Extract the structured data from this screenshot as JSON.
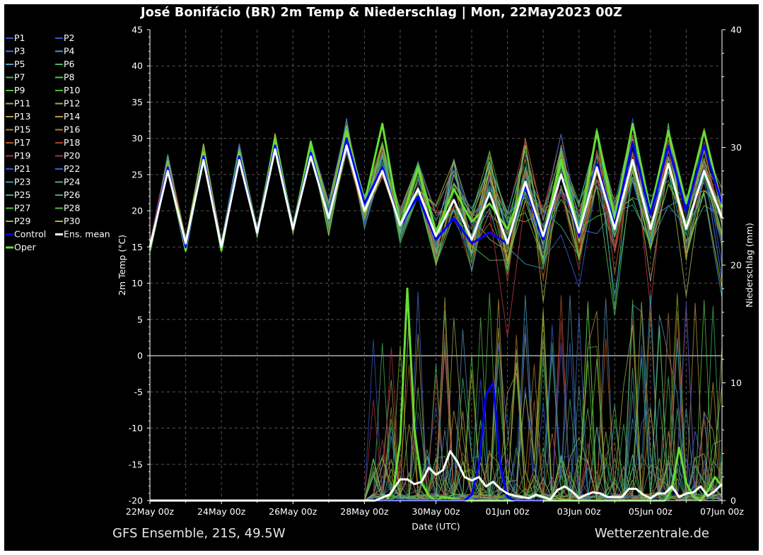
{
  "title": "José Bonifácio  (BR)  2m Temp & Niederschlag | Mon, 22May2023 00Z",
  "footer": {
    "model": "GFS Ensemble, 21S, 49.5W",
    "source": "Wetterzentrale.de"
  },
  "colors": {
    "background": "#000000",
    "grid": "#555555",
    "control": "#0000ff",
    "mean": "#ffffff",
    "oper": "#66dd33"
  },
  "chart_data": {
    "type": "line",
    "xlabel": "Date (UTC)",
    "ylabel_left": "2m Temp (°C)",
    "ylabel_right": "Niederschlag (mm)",
    "x_ticks": [
      "22May 00z",
      "24May 00z",
      "26May 00z",
      "28May 00z",
      "30May 00z",
      "01Jun 00z",
      "03Jun 00z",
      "05Jun 00z",
      "07Jun 00z"
    ],
    "xlim_days": [
      0,
      16
    ],
    "ylim_left": [
      -20,
      45
    ],
    "y_ticks_left": [
      -20,
      -15,
      -10,
      -5,
      0,
      5,
      10,
      15,
      20,
      25,
      30,
      35,
      40,
      45
    ],
    "ylim_right": [
      0,
      40
    ],
    "y_ticks_right": [
      0,
      10,
      20,
      30,
      40
    ],
    "grid": true,
    "legend_position": "left",
    "legend": [
      {
        "name": "P1",
        "color": "#3355cc"
      },
      {
        "name": "P2",
        "color": "#3355cc"
      },
      {
        "name": "P3",
        "color": "#4a6fd8"
      },
      {
        "name": "P4",
        "color": "#5a90b8"
      },
      {
        "name": "P5",
        "color": "#4aa0c8"
      },
      {
        "name": "P6",
        "color": "#44b866"
      },
      {
        "name": "P7",
        "color": "#44b866"
      },
      {
        "name": "P8",
        "color": "#55cc44"
      },
      {
        "name": "P9",
        "color": "#55bb33"
      },
      {
        "name": "P10",
        "color": "#55bb33"
      },
      {
        "name": "P11",
        "color": "#99aa55"
      },
      {
        "name": "P12",
        "color": "#aaaa44"
      },
      {
        "name": "P13",
        "color": "#bb9944"
      },
      {
        "name": "P14",
        "color": "#bb9944"
      },
      {
        "name": "P15",
        "color": "#bb7733"
      },
      {
        "name": "P16",
        "color": "#bb7733"
      },
      {
        "name": "P17",
        "color": "#bb5522"
      },
      {
        "name": "P18",
        "color": "#aa4422"
      },
      {
        "name": "P19",
        "color": "#aa3344"
      },
      {
        "name": "P20",
        "color": "#aa3344"
      },
      {
        "name": "P21",
        "color": "#3355cc"
      },
      {
        "name": "P22",
        "color": "#3366cc"
      },
      {
        "name": "P23",
        "color": "#3399bb"
      },
      {
        "name": "P24",
        "color": "#44aaaa"
      },
      {
        "name": "P25",
        "color": "#44aa88"
      },
      {
        "name": "P26",
        "color": "#44aa66"
      },
      {
        "name": "P27",
        "color": "#55bb44"
      },
      {
        "name": "P28",
        "color": "#55bb44"
      },
      {
        "name": "P29",
        "color": "#88bb33"
      },
      {
        "name": "P30",
        "color": "#aabb33"
      },
      {
        "name": "Control",
        "color": "#0000ff"
      },
      {
        "name": "Ens. mean",
        "color": "#ffffff"
      },
      {
        "name": "Oper",
        "color": "#66dd33"
      }
    ],
    "series": [
      {
        "name": "Ens. mean",
        "axis": "left",
        "x_days": [
          0,
          0.5,
          1,
          1.5,
          2,
          2.5,
          3,
          3.5,
          4,
          4.5,
          5,
          5.5,
          6,
          6.5,
          7,
          7.5,
          8,
          8.5,
          9,
          9.5,
          10,
          10.5,
          11,
          11.5,
          12,
          12.5,
          13,
          13.5,
          14,
          14.5,
          15,
          15.5,
          16
        ],
        "values": [
          15,
          25.5,
          15.5,
          27,
          15,
          27,
          17,
          28.5,
          17.5,
          27.5,
          19,
          29,
          20,
          25.5,
          18,
          23,
          16.5,
          21.5,
          16,
          22.5,
          15.5,
          24,
          16.5,
          25,
          17,
          26,
          17.5,
          27,
          17.5,
          26.5,
          17.5,
          25.5,
          19
        ]
      },
      {
        "name": "Oper",
        "axis": "left",
        "x_days": [
          0,
          0.5,
          1,
          1.5,
          2,
          2.5,
          3,
          3.5,
          4,
          4.5,
          5,
          5.5,
          6,
          6.5,
          7,
          7.5,
          8,
          8.5,
          9,
          9.5,
          10,
          10.5,
          11,
          11.5,
          12,
          12.5,
          13,
          13.5,
          14,
          14.5,
          15,
          15.5,
          16
        ],
        "values": [
          14.5,
          26,
          14.5,
          28,
          14.5,
          28,
          17,
          30,
          17.5,
          29.5,
          19,
          31,
          21,
          32,
          18,
          26,
          17,
          23,
          18.5,
          21,
          17.5,
          24,
          16.5,
          27,
          17,
          31,
          19,
          32,
          20,
          31,
          21,
          31,
          20.5
        ]
      },
      {
        "name": "Control",
        "axis": "left",
        "x_days": [
          0,
          0.5,
          1,
          1.5,
          2,
          2.5,
          3,
          3.5,
          4,
          4.5,
          5,
          5.5,
          6,
          6.5,
          7,
          7.5,
          8,
          8.5,
          9,
          9.5,
          10,
          10.5,
          11,
          11.5,
          12,
          12.5,
          13,
          13.5,
          14,
          14.5,
          15,
          15.5,
          16
        ],
        "values": [
          15,
          26,
          15,
          27.5,
          15,
          27.5,
          17,
          29,
          17.5,
          28,
          19,
          30,
          21,
          26,
          18,
          22,
          16,
          19,
          15.5,
          17,
          15.5,
          23.5,
          16,
          25,
          16.5,
          26.5,
          18,
          29.5,
          19.5,
          29,
          20,
          29,
          21
        ]
      },
      {
        "name": "Ens. mean",
        "axis": "right",
        "x_days": [
          0,
          6.3,
          6.7,
          7,
          7.2,
          7.4,
          7.6,
          7.8,
          8,
          8.2,
          8.4,
          8.6,
          8.8,
          9,
          9.2,
          9.4,
          9.6,
          9.8,
          10,
          10.2,
          10.4,
          10.6,
          10.8,
          11,
          11.2,
          11.4,
          11.6,
          11.8,
          12,
          12.2,
          12.4,
          12.6,
          12.8,
          13,
          13.2,
          13.4,
          13.6,
          13.8,
          14,
          14.2,
          14.4,
          14.6,
          14.8,
          15,
          15.2,
          15.4,
          15.6,
          15.8,
          16
        ],
        "values": [
          0,
          0,
          0.5,
          1.8,
          1.8,
          1.4,
          1.6,
          2.8,
          2.2,
          2.6,
          4.2,
          3.3,
          2,
          1.7,
          2,
          1.2,
          1.6,
          1,
          0.6,
          0.4,
          0.3,
          0.2,
          0.5,
          0.3,
          0.1,
          0.9,
          1.2,
          0.8,
          0.2,
          0.5,
          0.7,
          0.6,
          0.3,
          0.3,
          0.3,
          1,
          1,
          0.5,
          0.2,
          0.6,
          0.6,
          1.2,
          0.3,
          0.6,
          0.7,
          1.2,
          0.4,
          0.8,
          1.4
        ]
      },
      {
        "name": "Oper",
        "axis": "right",
        "x_days": [
          0,
          6.6,
          6.8,
          7,
          7.2,
          7.4,
          7.6,
          7.8,
          8,
          8.2,
          8.4,
          8.6,
          8.8,
          9,
          9.2,
          14.2,
          14.4,
          14.6,
          14.8,
          15,
          15.2,
          15.4,
          15.6,
          15.8,
          16
        ],
        "values": [
          0,
          0,
          0.8,
          5,
          18,
          6,
          1.5,
          0.4,
          0,
          0.3,
          0.2,
          0.1,
          0,
          0,
          0,
          0,
          0,
          1,
          4.5,
          1.5,
          0.3,
          0,
          0.8,
          2,
          1.2
        ]
      },
      {
        "name": "Control",
        "axis": "right",
        "x_days": [
          0,
          8.8,
          9,
          9.2,
          9.4,
          9.6,
          9.8,
          10,
          10.2,
          10.4,
          10.6,
          10.8,
          11
        ],
        "values": [
          0,
          0,
          0.5,
          3,
          9,
          10,
          3,
          0.3,
          0,
          0,
          0,
          0,
          0
        ]
      }
    ]
  }
}
